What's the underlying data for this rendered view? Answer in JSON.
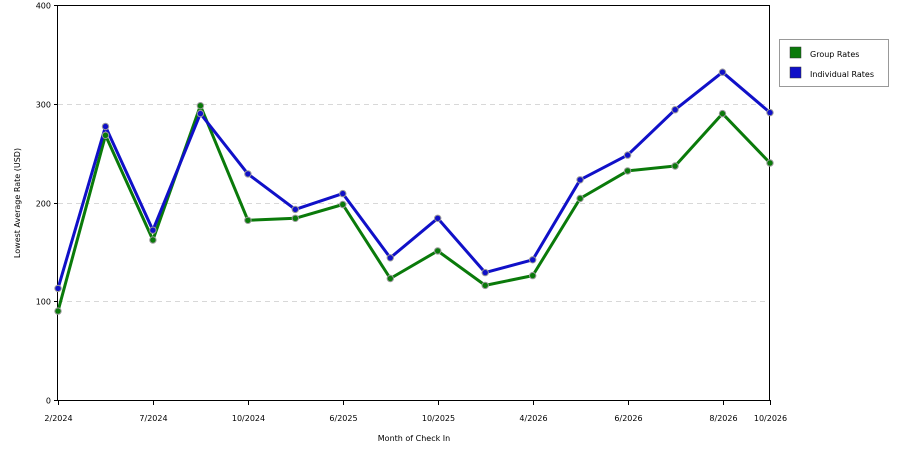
{
  "chart_data": {
    "type": "line",
    "xlabel": "Month of Check In",
    "ylabel": "Lowest Average Rate (USD)",
    "ylim": [
      0,
      400
    ],
    "yticks": [
      0,
      100,
      200,
      300,
      400
    ],
    "grid": "horizontal-dashed",
    "legend_position": "right",
    "x_tick_labels": [
      {
        "index": 0,
        "label": "2/2024"
      },
      {
        "index": 2,
        "label": "7/2024"
      },
      {
        "index": 4,
        "label": "10/2024"
      },
      {
        "index": 6,
        "label": "6/2025"
      },
      {
        "index": 8,
        "label": "10/2025"
      },
      {
        "index": 10,
        "label": "4/2026"
      },
      {
        "index": 12,
        "label": "6/2026"
      },
      {
        "index": 14,
        "label": "8/2026"
      },
      {
        "index": 15,
        "label": "10/2026"
      }
    ],
    "series": [
      {
        "name": "Group Rates",
        "color": "#0a7a0a",
        "values": [
          90,
          268,
          162,
          298,
          182,
          184,
          198,
          123,
          151,
          116,
          126,
          204,
          232,
          237,
          290,
          240
        ]
      },
      {
        "name": "Individual Rates",
        "color": "#1010c8",
        "values": [
          113,
          277,
          172,
          290,
          229,
          193,
          209,
          144,
          184,
          129,
          142,
          223,
          248,
          294,
          332,
          291
        ]
      }
    ]
  }
}
